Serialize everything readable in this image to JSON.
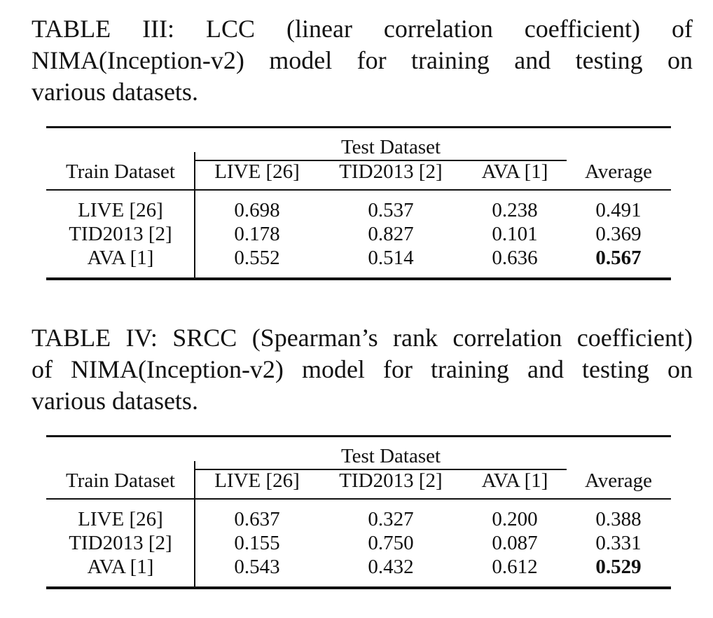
{
  "tables": [
    {
      "caption_lines": [
        "TABLE III: LCC (linear correlation coefficient) of",
        "NIMA(Inception-v2) model for training and testing on",
        "various datasets."
      ],
      "group_header": "Test Dataset",
      "row_header": "Train Dataset",
      "columns": [
        "LIVE [26]",
        "TID2013 [2]",
        "AVA [1]",
        "Average"
      ],
      "rows": [
        {
          "label": "LIVE [26]",
          "values": [
            "0.698",
            "0.537",
            "0.238",
            "0.491"
          ]
        },
        {
          "label": "TID2013 [2]",
          "values": [
            "0.178",
            "0.827",
            "0.101",
            "0.369"
          ]
        },
        {
          "label": "AVA [1]",
          "values": [
            "0.552",
            "0.514",
            "0.636",
            "0.567"
          ]
        }
      ]
    },
    {
      "caption_lines": [
        "TABLE IV: SRCC (Spearman’s rank correlation coefficient)",
        "of NIMA(Inception-v2) model for training and testing on",
        "various datasets."
      ],
      "group_header": "Test Dataset",
      "row_header": "Train Dataset",
      "columns": [
        "LIVE [26]",
        "TID2013 [2]",
        "AVA [1]",
        "Average"
      ],
      "rows": [
        {
          "label": "LIVE [26]",
          "values": [
            "0.637",
            "0.327",
            "0.200",
            "0.388"
          ]
        },
        {
          "label": "TID2013 [2]",
          "values": [
            "0.155",
            "0.750",
            "0.087",
            "0.331"
          ]
        },
        {
          "label": "AVA [1]",
          "values": [
            "0.543",
            "0.432",
            "0.612",
            "0.529"
          ]
        }
      ]
    }
  ]
}
